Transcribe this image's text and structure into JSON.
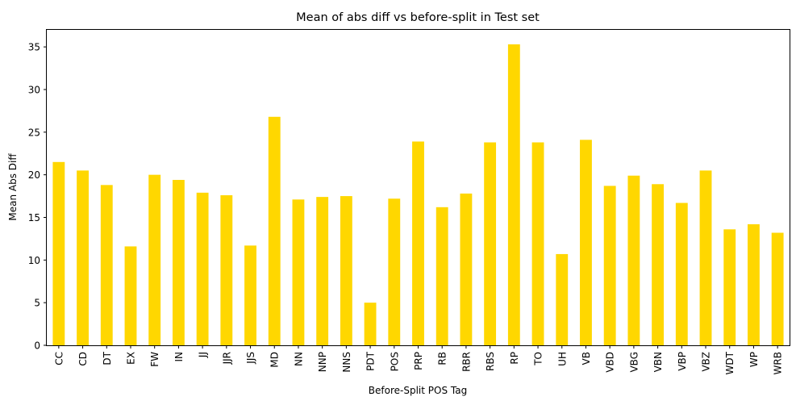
{
  "chart_data": {
    "type": "bar",
    "title": "Mean of abs diff vs before-split in Test set",
    "xlabel": "Before-Split POS Tag",
    "ylabel": "Mean Abs Diff",
    "ylim": [
      0,
      37
    ],
    "yticks": [
      0,
      5,
      10,
      15,
      20,
      25,
      30,
      35
    ],
    "grid": false,
    "legend": "none",
    "bar_color": "#ffd700",
    "categories": [
      "CC",
      "CD",
      "DT",
      "EX",
      "FW",
      "IN",
      "JJ",
      "JJR",
      "JJS",
      "MD",
      "NN",
      "NNP",
      "NNS",
      "PDT",
      "POS",
      "PRP",
      "RB",
      "RBR",
      "RBS",
      "RP",
      "TO",
      "UH",
      "VB",
      "VBD",
      "VBG",
      "VBN",
      "VBP",
      "VBZ",
      "WDT",
      "WP",
      "WRB"
    ],
    "values": [
      21.5,
      20.5,
      18.8,
      11.6,
      20.0,
      19.4,
      17.9,
      17.6,
      11.7,
      26.8,
      17.1,
      17.4,
      17.5,
      5.0,
      17.2,
      23.9,
      16.2,
      17.8,
      23.8,
      35.3,
      23.8,
      10.7,
      24.1,
      18.7,
      19.9,
      18.9,
      16.7,
      20.5,
      13.6,
      14.2,
      13.2
    ]
  }
}
